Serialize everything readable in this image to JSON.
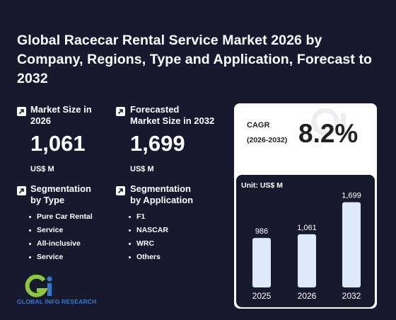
{
  "title": "Global Racecar Rental Service Market 2026 by Company, Regions, Type and Application, Forecast to 2032",
  "market_size": {
    "label_line1": "Market Size in",
    "label_line2": "2026",
    "value": "1,061",
    "unit": "US$ M"
  },
  "forecast_size": {
    "label_line1": "Forecasted",
    "label_line2": "Market Size in 2032",
    "value": "1,699",
    "unit": "US$ M"
  },
  "segmentation_type": {
    "label_line1": "Segmentation",
    "label_line2": "by Type",
    "items": [
      "Pure Car Rental",
      "Service",
      "All-inclusive",
      "Service"
    ]
  },
  "segmentation_application": {
    "label_line1": "Segmentation",
    "label_line2": "by Application",
    "items": [
      "F1",
      "NASCAR",
      "WRC",
      "Others"
    ]
  },
  "cagr": {
    "label": "CAGR",
    "range": "(2026-2032)",
    "value": "8.2%"
  },
  "logo": {
    "text": "GLOBAL INFO RESEARCH",
    "colors": {
      "green": "#8dc63f",
      "blue": "#3a78c9"
    }
  },
  "colors": {
    "background": "#171a2e",
    "bar": "#deeafc",
    "card": "#ffffff"
  },
  "chart_data": {
    "type": "bar",
    "unit_label": "Unit: US$ M",
    "categories": [
      "2025",
      "2026",
      "2032"
    ],
    "values": [
      986,
      1061,
      1699
    ],
    "value_labels": [
      "986",
      "1,061",
      "1,699"
    ],
    "ylim": [
      0,
      1800
    ]
  }
}
